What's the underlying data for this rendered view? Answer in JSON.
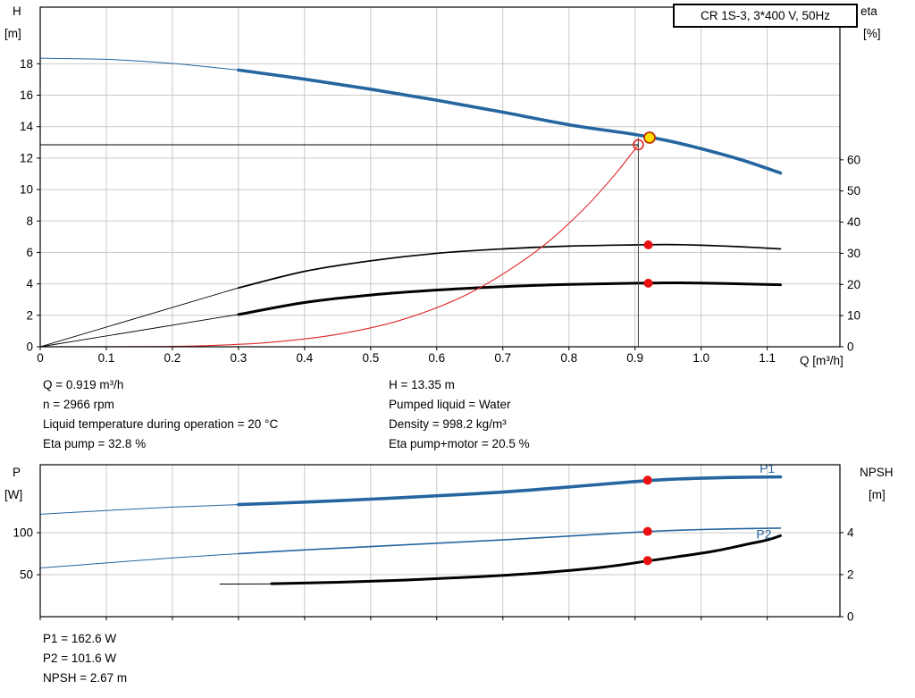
{
  "title_box": {
    "label": "CR 1S-3, 3*400 V, 50Hz"
  },
  "colors": {
    "curve_blue": "#2565a0",
    "curve_black": "#000000",
    "curve_red": "#e02828",
    "marker_red": "#e81010",
    "duty_fill": "#ffe000",
    "duty_ring": "#c03000",
    "grid": "#c9c9c9",
    "axis": "#000000"
  },
  "axis_labels_top": {
    "left_1": "H",
    "left_2": "[m]",
    "right_1": "eta",
    "right_2": "[%]",
    "x_unit": "Q [m³/h]"
  },
  "axis_labels_bottom": {
    "left_1": "P",
    "left_2": "[W]",
    "right_1": "NPSH",
    "right_2": "[m]"
  },
  "info_top": {
    "left": [
      "Q = 0.919 m³/h",
      "n = 2966 rpm",
      "Liquid temperature during operation = 20 °C",
      "Eta pump = 32.8 %"
    ],
    "right": [
      "H = 13.35 m",
      "Pumped liquid = Water",
      "Density = 998.2 kg/m³",
      "Eta pump+motor = 20.5 %"
    ]
  },
  "info_bottom": [
    "P1 = 162.6 W",
    "P2 = 101.6 W",
    "NPSH = 2.67 m"
  ],
  "chart_data": [
    {
      "id": "hq-eta",
      "type": "line",
      "title": "CR 1S-3, 3*400 V, 50Hz",
      "x_axis": {
        "label": "Q [m³/h]",
        "min": 0,
        "max": 1.21,
        "ticks": [
          0,
          0.1,
          0.2,
          0.3,
          0.4,
          0.5,
          0.6,
          0.7,
          0.8,
          0.9,
          1.0,
          1.1
        ],
        "tick_labels": [
          "0",
          "0.1",
          "0.2",
          "0.3",
          "0.4",
          "0.5",
          "0.6",
          "0.7",
          "0.8",
          "0.9",
          "1.0",
          "1.1"
        ],
        "show_labels": true
      },
      "y_left": {
        "label": "H [m]",
        "min": 0,
        "max": 21.6,
        "ticks": [
          0,
          2,
          4,
          6,
          8,
          10,
          12,
          14,
          16,
          18
        ]
      },
      "y_right": {
        "label": "eta [%]",
        "min": 0,
        "max": 109,
        "ticks": [
          0,
          10,
          20,
          30,
          40,
          50,
          60
        ]
      },
      "operating_point": {
        "Q_m3h": 0.919,
        "H_m": 13.35,
        "eta_pump_pct": 32.8,
        "eta_pump_motor_pct": 20.5,
        "n_rpm": 2966
      },
      "series": [
        {
          "name": "hq-curve-lead",
          "axis": "left",
          "color": "#2565a0",
          "width": 1,
          "points": [
            [
              0,
              18.35
            ],
            [
              0.1,
              18.28
            ],
            [
              0.2,
              18.02
            ],
            [
              0.3,
              17.6
            ]
          ]
        },
        {
          "name": "hq-curve",
          "axis": "left",
          "color": "#2565a0",
          "width": 3.6,
          "points": [
            [
              0.3,
              17.6
            ],
            [
              0.4,
              17.02
            ],
            [
              0.5,
              16.38
            ],
            [
              0.6,
              15.68
            ],
            [
              0.7,
              14.92
            ],
            [
              0.8,
              14.12
            ],
            [
              0.9,
              13.5
            ],
            [
              0.95,
              13.1
            ],
            [
              1.0,
              12.6
            ],
            [
              1.06,
              11.9
            ],
            [
              1.12,
              11.05
            ]
          ]
        },
        {
          "name": "eta-pump-curve-lead",
          "axis": "left",
          "color": "#000000",
          "width": 0.9,
          "points": [
            [
              0,
              0
            ],
            [
              0.3,
              3.75
            ]
          ]
        },
        {
          "name": "eta-pump-curve",
          "axis": "right",
          "color": "#000000",
          "width": 1.7,
          "points": [
            [
              0.3,
              18.9
            ],
            [
              0.4,
              24.2
            ],
            [
              0.5,
              27.6
            ],
            [
              0.6,
              30.0
            ],
            [
              0.7,
              31.4
            ],
            [
              0.8,
              32.3
            ],
            [
              0.9,
              32.7
            ],
            [
              0.95,
              32.8
            ],
            [
              1.0,
              32.6
            ],
            [
              1.06,
              32.1
            ],
            [
              1.12,
              31.4
            ]
          ]
        },
        {
          "name": "eta-pump-motor-curve-lead",
          "axis": "left",
          "color": "#000000",
          "width": 0.9,
          "points": [
            [
              0,
              0
            ],
            [
              0.3,
              2.06
            ]
          ]
        },
        {
          "name": "eta-pump-motor-curve",
          "axis": "right",
          "color": "#000000",
          "width": 3,
          "points": [
            [
              0.3,
              10.35
            ],
            [
              0.4,
              14.2
            ],
            [
              0.5,
              16.6
            ],
            [
              0.6,
              18.2
            ],
            [
              0.7,
              19.3
            ],
            [
              0.8,
              20.0
            ],
            [
              0.9,
              20.4
            ],
            [
              0.95,
              20.5
            ],
            [
              1.0,
              20.45
            ],
            [
              1.06,
              20.2
            ],
            [
              1.12,
              19.9
            ]
          ]
        },
        {
          "name": "duty-parabola",
          "axis": "left",
          "color": "#e02828",
          "width": 1.1,
          "points": [
            [
              0,
              0
            ],
            [
              0.15,
              0.01
            ],
            [
              0.25,
              0.07
            ],
            [
              0.35,
              0.29
            ],
            [
              0.45,
              0.79
            ],
            [
              0.55,
              1.75
            ],
            [
              0.65,
              3.42
            ],
            [
              0.75,
              6.06
            ],
            [
              0.82,
              8.66
            ],
            [
              0.87,
              10.98
            ],
            [
              0.905,
              12.85
            ]
          ]
        }
      ],
      "duty": {
        "q": 0.905,
        "h": 12.85,
        "v_top": 13.3
      },
      "markers": [
        {
          "name": "requested-duty-marker",
          "q": 0.905,
          "v": 12.85,
          "axis": "left",
          "style": "open",
          "r": 5.5,
          "stroke": "#e02828"
        },
        {
          "name": "duty-point-marker",
          "q": 0.922,
          "v": 13.3,
          "axis": "left",
          "style": "duty",
          "r": 6,
          "fill": "#ffe000",
          "stroke": "#c03000"
        },
        {
          "name": "eta-pump-point",
          "q": 0.92,
          "v": 32.7,
          "axis": "right",
          "style": "dot",
          "r": 5,
          "fill": "#e81010"
        },
        {
          "name": "eta-pump-motor-point",
          "q": 0.92,
          "v": 20.4,
          "axis": "right",
          "style": "dot",
          "r": 5,
          "fill": "#e81010"
        }
      ],
      "curve_labels": []
    },
    {
      "id": "power-npsh",
      "type": "line",
      "title": "Power and NPSH curves",
      "x_axis": {
        "label": "",
        "min": 0,
        "max": 1.21,
        "ticks": [
          0,
          0.1,
          0.2,
          0.3,
          0.4,
          0.5,
          0.6,
          0.7,
          0.8,
          0.9,
          1.0,
          1.1
        ],
        "tick_labels": [
          "0",
          "0.1",
          "0.2",
          "0.3",
          "0.4",
          "0.5",
          "0.6",
          "0.7",
          "0.8",
          "0.9",
          "1.0",
          "1.1"
        ],
        "show_labels": false
      },
      "y_left": {
        "label": "P [W]",
        "min": 0,
        "max": 181,
        "ticks": [
          50,
          100
        ]
      },
      "y_right": {
        "label": "NPSH [m]",
        "min": 0,
        "max": 7.23,
        "ticks": [
          0,
          2,
          4
        ]
      },
      "operating_point": {
        "P1_W": 162.6,
        "P2_W": 101.6,
        "NPSH_m": 2.67
      },
      "series": [
        {
          "name": "p1-curve-lead",
          "axis": "left",
          "color": "#2565a0",
          "width": 1,
          "points": [
            [
              0,
              122
            ],
            [
              0.1,
              126.5
            ],
            [
              0.2,
              130.5
            ],
            [
              0.3,
              133.5
            ]
          ]
        },
        {
          "name": "p1-curve",
          "axis": "left",
          "color": "#2565a0",
          "width": 3.6,
          "points": [
            [
              0.3,
              133.5
            ],
            [
              0.4,
              136.5
            ],
            [
              0.5,
              140
            ],
            [
              0.6,
              144
            ],
            [
              0.7,
              148.5
            ],
            [
              0.8,
              154.5
            ],
            [
              0.9,
              161
            ],
            [
              0.95,
              163.5
            ],
            [
              1.0,
              165
            ],
            [
              1.06,
              166
            ],
            [
              1.12,
              166.5
            ]
          ]
        },
        {
          "name": "p2-curve-lead",
          "axis": "left",
          "color": "#2565a0",
          "width": 1,
          "points": [
            [
              0,
              58
            ],
            [
              0.1,
              64
            ],
            [
              0.2,
              70
            ],
            [
              0.3,
              75
            ]
          ]
        },
        {
          "name": "p2-curve",
          "axis": "left",
          "color": "#2565a0",
          "width": 1.6,
          "points": [
            [
              0.3,
              75
            ],
            [
              0.4,
              79.5
            ],
            [
              0.5,
              83.5
            ],
            [
              0.6,
              87.5
            ],
            [
              0.7,
              91.5
            ],
            [
              0.8,
              96
            ],
            [
              0.9,
              100.5
            ],
            [
              0.95,
              102.5
            ],
            [
              1.0,
              103.8
            ],
            [
              1.06,
              104.8
            ],
            [
              1.12,
              105.5
            ]
          ]
        },
        {
          "name": "npsh-curve-lead",
          "axis": "right",
          "color": "#000000",
          "width": 1,
          "points": [
            [
              0.272,
              1.55
            ],
            [
              0.35,
              1.56
            ]
          ]
        },
        {
          "name": "npsh-curve",
          "axis": "right",
          "color": "#000000",
          "width": 3,
          "points": [
            [
              0.35,
              1.57
            ],
            [
              0.45,
              1.64
            ],
            [
              0.55,
              1.74
            ],
            [
              0.65,
              1.88
            ],
            [
              0.75,
              2.07
            ],
            [
              0.85,
              2.35
            ],
            [
              0.919,
              2.65
            ],
            [
              0.97,
              2.88
            ],
            [
              1.02,
              3.12
            ],
            [
              1.07,
              3.45
            ],
            [
              1.1,
              3.65
            ],
            [
              1.12,
              3.85
            ]
          ]
        }
      ],
      "markers": [
        {
          "name": "p1-point",
          "q": 0.919,
          "v": 162.6,
          "axis": "left",
          "style": "dot",
          "r": 5,
          "fill": "#e81010"
        },
        {
          "name": "p2-point",
          "q": 0.919,
          "v": 101.6,
          "axis": "left",
          "style": "dot",
          "r": 5,
          "fill": "#e81010"
        },
        {
          "name": "npsh-point",
          "q": 0.919,
          "v": 2.67,
          "axis": "right",
          "style": "dot",
          "r": 5,
          "fill": "#e81010"
        }
      ],
      "curve_labels": [
        {
          "text": "P1",
          "q": 1.1,
          "v": 171.5,
          "axis": "left",
          "color": "#2565a0"
        },
        {
          "text": "P2",
          "q": 1.095,
          "v": 93,
          "axis": "left",
          "color": "#2565a0"
        }
      ]
    }
  ]
}
